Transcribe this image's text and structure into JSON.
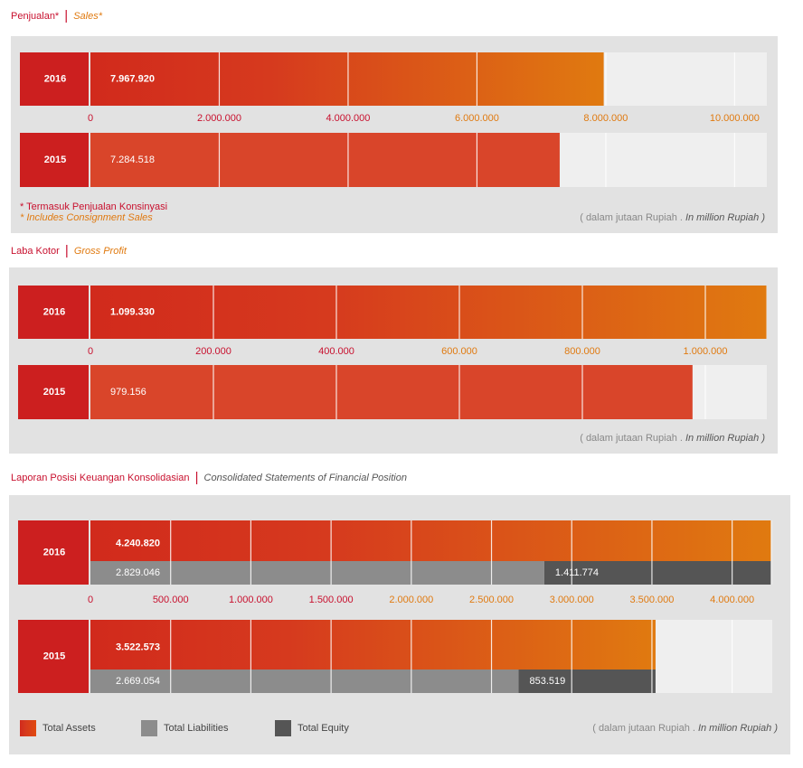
{
  "chart_data": [
    {
      "type": "bar",
      "title": "Penjualan*",
      "subtitle": "Sales*",
      "categories": [
        "2016",
        "2015"
      ],
      "values": [
        7967920,
        7284518
      ],
      "value_labels": [
        "7.967.920",
        "7.284.518"
      ],
      "colors": [
        "#e07a10",
        "#d9452a"
      ],
      "xlim": [
        0,
        10500000
      ],
      "xticks": [
        0,
        {
          "value": 2000000,
          "label": "2.000.000"
        },
        {
          "value": 4000000,
          "label": "4.000.000"
        },
        {
          "value": 6000000,
          "label": "6.000.000"
        },
        {
          "value": 8000000,
          "label": "8.000.000"
        },
        {
          "value": 10000000,
          "label": "10.000.000"
        }
      ],
      "notes": [
        "* Termasuk Penjualan Konsinyasi",
        "* Includes Consignment Sales"
      ],
      "unit_note": "( dalam jutaan Rupiah .",
      "unit_note_en": "In million Rupiah )",
      "grid": true
    },
    {
      "type": "bar",
      "title": "Laba Kotor",
      "subtitle": "Gross Profit",
      "categories": [
        "2016",
        "2015"
      ],
      "values": [
        1099330,
        979156
      ],
      "value_labels": [
        "1.099.330",
        "979.156"
      ],
      "colors": [
        "#e07a10",
        "#d9452a"
      ],
      "xlim": [
        0,
        1100000
      ],
      "xticks": [
        0,
        {
          "value": 200000,
          "label": "200.000"
        },
        {
          "value": 400000,
          "label": "400.000"
        },
        {
          "value": 600000,
          "label": "600.000"
        },
        {
          "value": 800000,
          "label": "800.000"
        },
        {
          "value": 1000000,
          "label": "1.000.000"
        }
      ],
      "unit_note": "( dalam jutaan Rupiah .",
      "unit_note_en": "In million Rupiah )",
      "grid": true
    },
    {
      "type": "bar",
      "title": "Laporan Posisi Keuangan Konsolidasian",
      "subtitle": "Consolidated Statements of Financial Position",
      "categories": [
        "2016",
        "2015"
      ],
      "series": [
        {
          "name": "Total Assets",
          "color": "#d63a1e",
          "values": [
            4240820,
            3522573
          ],
          "value_labels": [
            "4.240.820",
            "3.522.573"
          ]
        },
        {
          "name": "Total Liabilities",
          "color": "#8c8c8c",
          "values": [
            2829046,
            2669054
          ],
          "value_labels": [
            "2.829.046",
            "2.669.054"
          ]
        },
        {
          "name": "Total Equity",
          "color": "#555555",
          "values": [
            1411774,
            853519
          ],
          "value_labels": [
            "1.411.774",
            "853.519"
          ]
        }
      ],
      "xlim": [
        0,
        4250000
      ],
      "xticks": [
        0,
        {
          "value": 500000,
          "label": "500.000"
        },
        {
          "value": 1000000,
          "label": "1.000.000"
        },
        {
          "value": 1500000,
          "label": "1.500.000"
        },
        {
          "value": 2000000,
          "label": "2.000.000"
        },
        {
          "value": 2500000,
          "label": "2.500.000"
        },
        {
          "value": 3000000,
          "label": "3.000.000"
        },
        {
          "value": 3500000,
          "label": "3.500.000"
        },
        {
          "value": 4000000,
          "label": "4.000.000"
        }
      ],
      "unit_note": "( dalam jutaan Rupiah .",
      "unit_note_en": "In million Rupiah )",
      "grid": true
    }
  ]
}
